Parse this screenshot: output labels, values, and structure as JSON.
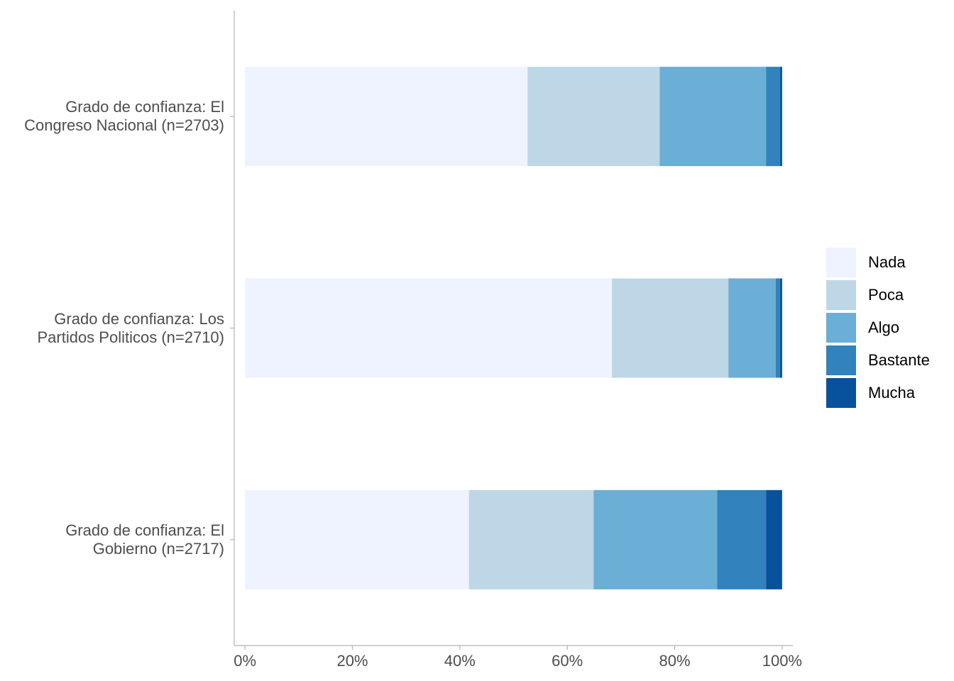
{
  "chart_data": {
    "type": "bar",
    "orientation": "horizontal",
    "stacked": true,
    "categories": [
      "Grado de confianza: El\nCongreso Nacional (n=2703)",
      "Grado de confianza: Los\nPartidos Politicos (n=2710)",
      "Grado de confianza: El\nGobierno (n=2717)"
    ],
    "series": [
      {
        "name": "Nada",
        "color": "#eff3ff",
        "values": [
          52.6,
          68.3,
          41.7
        ]
      },
      {
        "name": "Poca",
        "color": "#bdd7e7",
        "values": [
          24.6,
          21.7,
          23.2
        ]
      },
      {
        "name": "Algo",
        "color": "#6baed6",
        "values": [
          19.8,
          8.8,
          23.0
        ]
      },
      {
        "name": "Bastante",
        "color": "#3182bd",
        "values": [
          2.6,
          0.8,
          9.1
        ]
      },
      {
        "name": "Mucha",
        "color": "#08519c",
        "values": [
          0.4,
          0.4,
          3.0
        ]
      }
    ],
    "xlim": [
      -2,
      102
    ],
    "xticks": [
      {
        "value": 0,
        "label": "0%"
      },
      {
        "value": 20,
        "label": "20%"
      },
      {
        "value": 40,
        "label": "40%"
      },
      {
        "value": 60,
        "label": "60%"
      },
      {
        "value": 80,
        "label": "80%"
      },
      {
        "value": 100,
        "label": "100%"
      }
    ],
    "legend": "right"
  }
}
